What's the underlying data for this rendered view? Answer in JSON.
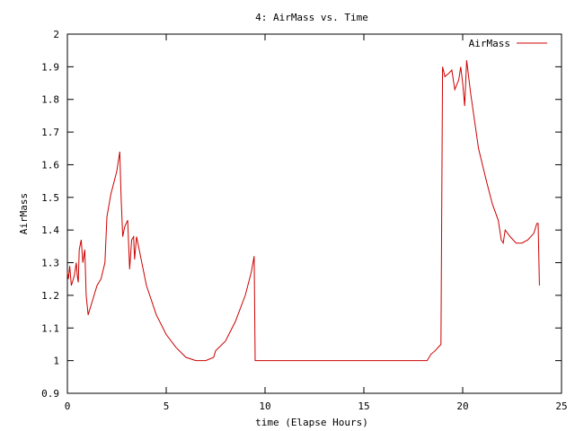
{
  "chart_data": {
    "type": "line",
    "title": "4: AirMass vs. Time",
    "xlabel": "time (Elapse Hours)",
    "ylabel": "AirMass",
    "xlim": [
      0,
      25
    ],
    "ylim": [
      0.9,
      2.0
    ],
    "x_ticks": [
      0,
      5,
      10,
      15,
      20,
      25
    ],
    "x_tick_labels": [
      "0",
      "5",
      "10",
      "15",
      "20",
      "25"
    ],
    "y_ticks": [
      0.9,
      1.0,
      1.1,
      1.2,
      1.3,
      1.4,
      1.5,
      1.6,
      1.7,
      1.8,
      1.9,
      2.0
    ],
    "y_tick_labels": [
      "0.9",
      "1",
      "1.1",
      "1.2",
      "1.3",
      "1.4",
      "1.5",
      "1.6",
      "1.7",
      "1.8",
      "1.9",
      "2"
    ],
    "grid": false,
    "legend_position": "top-right",
    "colors": {
      "series": "#cc0000",
      "axes": "#000000"
    },
    "series": [
      {
        "name": "AirMass",
        "points": [
          [
            0.0,
            1.27
          ],
          [
            0.05,
            1.25
          ],
          [
            0.12,
            1.29
          ],
          [
            0.2,
            1.23
          ],
          [
            0.35,
            1.26
          ],
          [
            0.45,
            1.3
          ],
          [
            0.5,
            1.26
          ],
          [
            0.55,
            1.24
          ],
          [
            0.6,
            1.34
          ],
          [
            0.7,
            1.37
          ],
          [
            0.78,
            1.3
          ],
          [
            0.88,
            1.34
          ],
          [
            0.95,
            1.2
          ],
          [
            1.05,
            1.14
          ],
          [
            1.15,
            1.16
          ],
          [
            1.3,
            1.19
          ],
          [
            1.5,
            1.23
          ],
          [
            1.7,
            1.25
          ],
          [
            1.9,
            1.3
          ],
          [
            2.0,
            1.44
          ],
          [
            2.2,
            1.51
          ],
          [
            2.5,
            1.58
          ],
          [
            2.65,
            1.64
          ],
          [
            2.72,
            1.5
          ],
          [
            2.8,
            1.38
          ],
          [
            2.9,
            1.41
          ],
          [
            3.05,
            1.43
          ],
          [
            3.15,
            1.28
          ],
          [
            3.25,
            1.37
          ],
          [
            3.35,
            1.38
          ],
          [
            3.4,
            1.31
          ],
          [
            3.5,
            1.38
          ],
          [
            3.7,
            1.32
          ],
          [
            4.0,
            1.23
          ],
          [
            4.5,
            1.14
          ],
          [
            5.0,
            1.08
          ],
          [
            5.5,
            1.04
          ],
          [
            6.0,
            1.01
          ],
          [
            6.5,
            1.0
          ],
          [
            7.0,
            1.0
          ],
          [
            7.4,
            1.01
          ],
          [
            7.5,
            1.03
          ],
          [
            8.0,
            1.06
          ],
          [
            8.5,
            1.12
          ],
          [
            9.0,
            1.2
          ],
          [
            9.3,
            1.27
          ],
          [
            9.45,
            1.32
          ],
          [
            9.5,
            1.0
          ],
          [
            10.0,
            1.0
          ],
          [
            15.0,
            1.0
          ],
          [
            18.2,
            1.0
          ],
          [
            18.4,
            1.02
          ],
          [
            18.6,
            1.03
          ],
          [
            18.9,
            1.05
          ],
          [
            18.98,
            1.9
          ],
          [
            19.1,
            1.87
          ],
          [
            19.3,
            1.88
          ],
          [
            19.45,
            1.89
          ],
          [
            19.6,
            1.83
          ],
          [
            19.8,
            1.86
          ],
          [
            19.9,
            1.9
          ],
          [
            20.0,
            1.85
          ],
          [
            20.1,
            1.78
          ],
          [
            20.2,
            1.92
          ],
          [
            20.4,
            1.82
          ],
          [
            20.8,
            1.65
          ],
          [
            21.2,
            1.55
          ],
          [
            21.5,
            1.48
          ],
          [
            21.8,
            1.43
          ],
          [
            21.95,
            1.37
          ],
          [
            22.05,
            1.36
          ],
          [
            22.15,
            1.4
          ],
          [
            22.4,
            1.38
          ],
          [
            22.7,
            1.36
          ],
          [
            23.0,
            1.36
          ],
          [
            23.3,
            1.37
          ],
          [
            23.6,
            1.39
          ],
          [
            23.75,
            1.42
          ],
          [
            23.82,
            1.42
          ],
          [
            23.88,
            1.23
          ]
        ]
      }
    ]
  }
}
